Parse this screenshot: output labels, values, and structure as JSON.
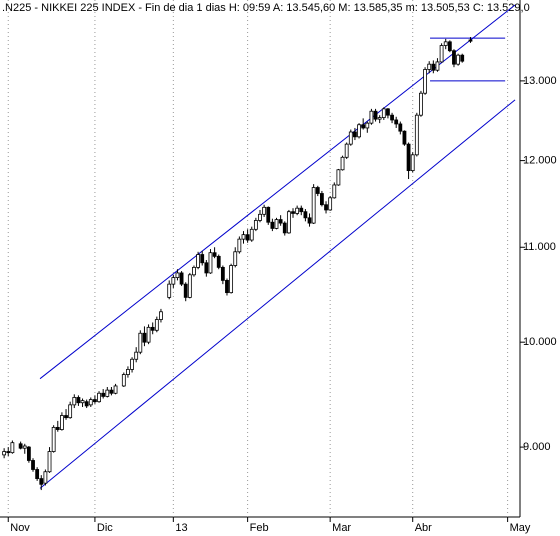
{
  "chart_data": {
    "type": "candlestick",
    "title": ".N225 - NIKKEI 225 INDEX - Fin de dia 1 dias  H: 09:59  A: 13.545,60  M: 13.585,35  m: 13.505,53  C: 13.529,0",
    "log_scale": true,
    "grid": true,
    "color": "#000000",
    "line_color": "#0000cc",
    "xlim": [
      -2,
      124
    ],
    "ylim": [
      8390,
      14100
    ],
    "xticks": [
      {
        "value": 0,
        "label": "Nov"
      },
      {
        "value": 21,
        "label": "Dic"
      },
      {
        "value": 40,
        "label": "13"
      },
      {
        "value": 58,
        "label": "Feb"
      },
      {
        "value": 78,
        "label": "Mar"
      },
      {
        "value": 98,
        "label": "Abr"
      },
      {
        "value": 121,
        "label": "May"
      }
    ],
    "yticks": [
      {
        "value": 9000,
        "label": "9.000"
      },
      {
        "value": 10000,
        "label": "10.000"
      },
      {
        "value": 11000,
        "label": "11.000"
      },
      {
        "value": 12000,
        "label": "12.000"
      },
      {
        "value": 13000,
        "label": "13.000"
      }
    ],
    "x": [
      -1,
      0,
      1,
      3,
      4,
      5,
      6,
      7,
      8,
      9,
      10,
      11,
      12,
      13,
      14,
      15,
      16,
      17,
      18,
      19,
      20,
      21,
      22,
      23,
      24,
      25,
      26,
      28,
      29,
      30,
      31,
      32,
      33,
      34,
      35,
      36,
      37,
      39,
      40,
      41,
      42,
      43,
      44,
      45,
      46,
      47,
      48,
      49,
      50,
      51,
      52,
      53,
      54,
      55,
      56,
      57,
      58,
      59,
      60,
      61,
      62,
      63,
      64,
      65,
      66,
      67,
      68,
      69,
      70,
      71,
      72,
      73,
      74,
      75,
      76,
      77,
      78,
      79,
      80,
      81,
      82,
      83,
      84,
      85,
      86,
      87,
      88,
      89,
      90,
      91,
      92,
      93,
      94,
      95,
      96,
      97,
      98,
      99,
      100,
      101,
      102,
      103,
      104,
      105,
      106,
      107,
      108,
      109,
      110,
      112
    ],
    "open": [
      8930,
      8960,
      8950,
      9030,
      8990,
      9000,
      8880,
      8800,
      8720,
      8680,
      8780,
      8960,
      9180,
      9160,
      9290,
      9270,
      9390,
      9460,
      9410,
      9420,
      9390,
      9440,
      9420,
      9500,
      9470,
      9530,
      9500,
      9570,
      9680,
      9730,
      9830,
      9900,
      10090,
      10000,
      10150,
      10120,
      10230,
      10460,
      10600,
      10670,
      10720,
      10600,
      10460,
      10700,
      10780,
      10920,
      10830,
      10720,
      10940,
      10900,
      10780,
      10640,
      10510,
      10800,
      10950,
      11090,
      11140,
      11080,
      11200,
      11300,
      11370,
      11450,
      11280,
      11210,
      11310,
      11270,
      11160,
      11400,
      11380,
      11440,
      11400,
      11330,
      11270,
      11680,
      11610,
      11480,
      11420,
      11560,
      11710,
      11890,
      12040,
      12200,
      12350,
      12290,
      12440,
      12400,
      12460,
      12610,
      12510,
      12530,
      12640,
      12560,
      12500,
      12450,
      12360,
      12200,
      11880,
      12070,
      12560,
      12840,
      13150,
      13220,
      13140,
      13250,
      13470,
      13520,
      13400,
      13220,
      13340,
      13545.6
    ],
    "high": [
      8990,
      9000,
      9060,
      9050,
      9030,
      9010,
      8900,
      8820,
      8750,
      8800,
      9000,
      9200,
      9240,
      9320,
      9350,
      9420,
      9490,
      9480,
      9450,
      9440,
      9460,
      9480,
      9520,
      9540,
      9560,
      9560,
      9590,
      9700,
      9760,
      9850,
      9950,
      10120,
      10160,
      10180,
      10200,
      10260,
      10340,
      10640,
      10700,
      10760,
      10740,
      10620,
      10720,
      10800,
      10950,
      10960,
      10860,
      10980,
      11000,
      10920,
      10800,
      10660,
      10820,
      11000,
      11120,
      11180,
      11200,
      11230,
      11330,
      11420,
      11480,
      11460,
      11320,
      11330,
      11360,
      11290,
      11420,
      11440,
      11470,
      11470,
      11430,
      11380,
      11720,
      11700,
      11640,
      11520,
      11580,
      11740,
      11900,
      12060,
      12220,
      12380,
      12400,
      12460,
      12520,
      12480,
      12640,
      12640,
      12560,
      12660,
      12650,
      12590,
      12540,
      12480,
      12370,
      12220,
      12100,
      12590,
      12870,
      13180,
      13260,
      13270,
      13300,
      13500,
      13560,
      13540,
      13420,
      13360,
      13360,
      13585.35
    ],
    "low": [
      8900,
      8920,
      8940,
      8980,
      8940,
      8860,
      8780,
      8700,
      8620,
      8660,
      8770,
      8950,
      9140,
      9150,
      9250,
      9260,
      9360,
      9380,
      9370,
      9360,
      9370,
      9400,
      9410,
      9450,
      9460,
      9480,
      9490,
      9560,
      9650,
      9700,
      9800,
      9880,
      9960,
      9980,
      10080,
      10100,
      10200,
      10440,
      10560,
      10640,
      10580,
      10420,
      10450,
      10680,
      10760,
      10800,
      10680,
      10710,
      10880,
      10760,
      10600,
      10480,
      10500,
      10780,
      10930,
      11040,
      11050,
      11060,
      11180,
      11280,
      11340,
      11250,
      11180,
      11200,
      11240,
      11130,
      11150,
      11330,
      11360,
      11360,
      11290,
      11230,
      11260,
      11580,
      11460,
      11380,
      11410,
      11550,
      11700,
      11880,
      12020,
      12180,
      12250,
      12270,
      12380,
      12340,
      12440,
      12480,
      12460,
      12500,
      12520,
      12460,
      12400,
      12320,
      12180,
      11780,
      11860,
      12050,
      12540,
      12820,
      13100,
      13100,
      13120,
      13240,
      13420,
      13380,
      13180,
      13200,
      13240,
      13505.53
    ],
    "close": [
      8960,
      8950,
      9040,
      8990,
      9010,
      8880,
      8800,
      8720,
      8670,
      8780,
      8960,
      9180,
      9160,
      9290,
      9270,
      9390,
      9460,
      9410,
      9430,
      9380,
      9440,
      9420,
      9500,
      9470,
      9530,
      9500,
      9570,
      9680,
      9730,
      9830,
      9900,
      10090,
      10000,
      10150,
      10120,
      10230,
      10310,
      10600,
      10670,
      10720,
      10600,
      10460,
      10700,
      10780,
      10920,
      10830,
      10720,
      10940,
      10900,
      10780,
      10640,
      10510,
      10800,
      10950,
      11090,
      11140,
      11080,
      11200,
      11300,
      11370,
      11450,
      11280,
      11210,
      11310,
      11270,
      11160,
      11400,
      11380,
      11440,
      11400,
      11330,
      11270,
      11680,
      11610,
      11480,
      11420,
      11560,
      11710,
      11890,
      12040,
      12200,
      12350,
      12290,
      12440,
      12400,
      12460,
      12610,
      12510,
      12530,
      12640,
      12560,
      12500,
      12450,
      12360,
      12200,
      11880,
      12070,
      12560,
      12840,
      13150,
      13220,
      13140,
      13250,
      13470,
      13520,
      13400,
      13220,
      13340,
      13260,
      13529
    ],
    "lines": [
      {
        "x": [
          7.7,
          122.8
        ],
        "y": [
          9640,
          14030
        ]
      },
      {
        "x": [
          7.7,
          122.8
        ],
        "y": [
          8635,
          12755
        ]
      },
      {
        "x": [
          102.2,
          120.4
        ],
        "y": [
          13570,
          13570
        ]
      },
      {
        "x": [
          102.2,
          120.4
        ],
        "y": [
          13000,
          13000
        ]
      }
    ]
  }
}
